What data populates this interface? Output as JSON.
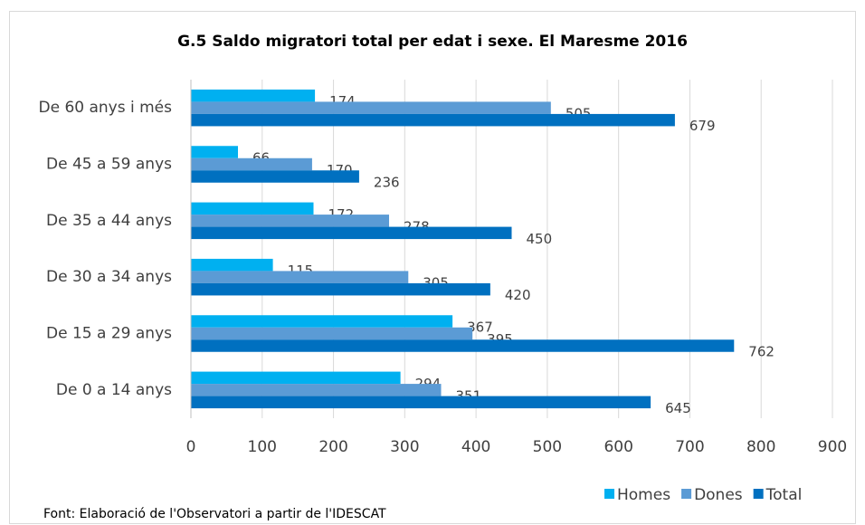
{
  "chart_data": {
    "type": "hbar",
    "title": "G.5 Saldo migratori total per edat i sexe. El Maresme 2016",
    "categories": [
      "De 60 anys i més",
      "De 45 a 59 anys",
      "De 35 a 44 anys",
      "De 30 a 34 anys",
      "De 15 a 29 anys",
      "De 0 a 14 anys"
    ],
    "series": [
      {
        "name": "Homes",
        "color": "#00b0f0",
        "values": [
          174,
          66,
          172,
          115,
          367,
          294
        ]
      },
      {
        "name": "Dones",
        "color": "#5b9bd5",
        "values": [
          505,
          170,
          278,
          305,
          395,
          351
        ]
      },
      {
        "name": "Total",
        "color": "#0070c0",
        "values": [
          679,
          236,
          450,
          420,
          762,
          645
        ]
      }
    ],
    "xlim": [
      0,
      900
    ],
    "xticks": [
      0,
      100,
      200,
      300,
      400,
      500,
      600,
      700,
      800,
      900
    ],
    "grid": true,
    "legend": "bottom-right",
    "source": "Font: Elaboració de l'Observatori a partir de l'IDESCAT"
  }
}
